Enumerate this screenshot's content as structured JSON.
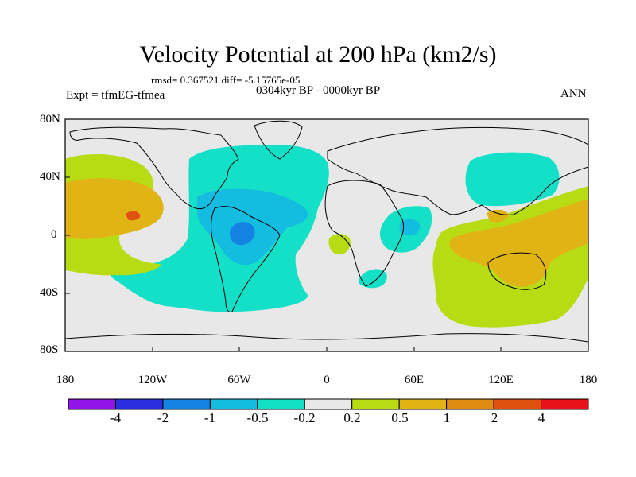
{
  "title": "Velocity Potential at 200 hPa (km2/s)",
  "stats": "rmsd= 0.367521  diff= -5.15765e-05",
  "expt": "Expt = tfmEG-tfmea",
  "period": "0304kyr BP - 0000kyr BP",
  "season": "ANN",
  "y_ticks": [
    "80N",
    "40N",
    "0",
    "40S",
    "80S"
  ],
  "x_ticks": [
    "180",
    "120W",
    "60W",
    "0",
    "60E",
    "120E",
    "180"
  ],
  "colorbar": {
    "labels": [
      "-4",
      "-2",
      "-1",
      "-0.5",
      "-0.2",
      "0.2",
      "0.5",
      "1",
      "2",
      "4"
    ],
    "colors": [
      "#9314e8",
      "#2a2ee0",
      "#1482e0",
      "#14bde0",
      "#12e0c4",
      "#e8e8e8",
      "#b8dc14",
      "#e0b414",
      "#e08c14",
      "#e0500e",
      "#e8121a"
    ]
  },
  "map_colors": {
    "ocean": "#e8e8e8",
    "neg1": "#14e0c8",
    "neg2": "#14bde0",
    "neg3": "#1482e0",
    "pos1": "#b8dc14",
    "pos2": "#e0b414",
    "pos3": "#e0500e"
  }
}
